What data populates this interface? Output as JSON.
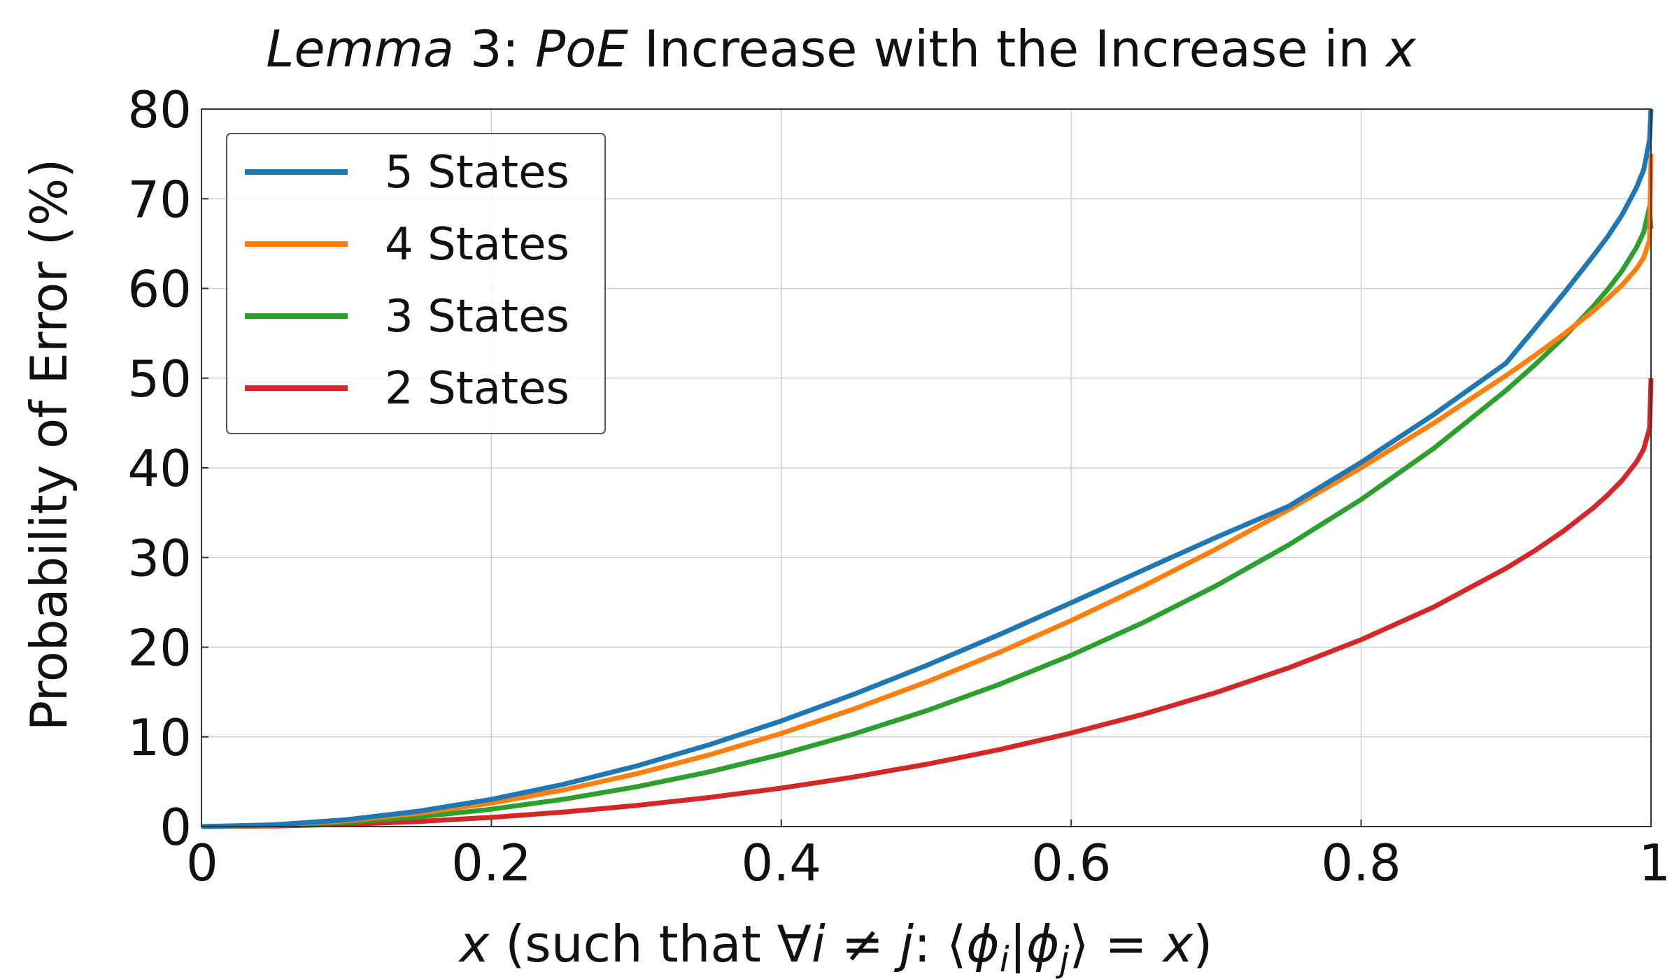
{
  "chart_data": {
    "type": "line",
    "title_parts": [
      {
        "text": "Lemma",
        "italic": true
      },
      {
        "text": " 3: ",
        "italic": false
      },
      {
        "text": "PoE",
        "italic": true
      },
      {
        "text": " Increase with the Increase in ",
        "italic": false
      },
      {
        "text": "x",
        "italic": true
      }
    ],
    "xlabel_parts": [
      {
        "text": "x",
        "italic": true
      },
      {
        "text": " (such that ∀",
        "italic": false
      },
      {
        "text": "i",
        "italic": true
      },
      {
        "text": " ≠ ",
        "italic": false
      },
      {
        "text": "j",
        "italic": true
      },
      {
        "text": ": ⟨",
        "italic": false
      },
      {
        "text": "ϕ",
        "italic": true
      },
      {
        "text": "i",
        "italic": true,
        "sub": true
      },
      {
        "text": "|",
        "italic": false
      },
      {
        "text": "ϕ",
        "italic": true
      },
      {
        "text": "j",
        "italic": true,
        "sub": true
      },
      {
        "text": "⟩ = ",
        "italic": false
      },
      {
        "text": "x",
        "italic": true
      },
      {
        "text": ")",
        "italic": false
      }
    ],
    "ylabel": "Probability of Error (%)",
    "xlim": [
      0,
      1
    ],
    "ylim": [
      0,
      80
    ],
    "x_ticks": [
      0,
      0.2,
      0.4,
      0.6,
      0.8,
      1
    ],
    "x_tick_labels": [
      "0",
      "0.2",
      "0.4",
      "0.6",
      "0.8",
      "1"
    ],
    "y_ticks": [
      0,
      10,
      20,
      30,
      40,
      50,
      60,
      70,
      80
    ],
    "y_tick_labels": [
      "0",
      "10",
      "20",
      "30",
      "40",
      "50",
      "60",
      "70",
      "80"
    ],
    "grid": true,
    "legend_position": "top-left",
    "x": [
      0,
      0.05,
      0.1,
      0.15,
      0.2,
      0.25,
      0.3,
      0.35,
      0.4,
      0.45,
      0.5,
      0.55,
      0.6,
      0.65,
      0.7,
      0.75,
      0.8,
      0.85,
      0.9,
      0.92,
      0.94,
      0.96,
      0.97,
      0.98,
      0.99,
      0.995,
      0.999,
      1.0
    ],
    "series": [
      {
        "name": "5 States",
        "color": "#1f77b4",
        "values": [
          0,
          0.1918,
          0.7644,
          1.7143,
          3.0349,
          4.7168,
          6.7472,
          9.1096,
          11.7832,
          14.7418,
          17.9526,
          21.3741,
          24.9522,
          28.6131,
          32.2522,
          35.7126,
          40.6046,
          45.9284,
          51.6712,
          55.5446,
          59.4935,
          63.6018,
          65.7476,
          68.2058,
          71.2624,
          73.2578,
          76.5546,
          80.0
        ]
      },
      {
        "name": "4 States",
        "color": "#ff7f0e",
        "values": [
          0,
          0.1645,
          0.6573,
          1.4776,
          2.6234,
          4.0915,
          5.878,
          7.9781,
          10.386,
          13.0956,
          16.1004,
          19.3938,
          22.9692,
          26.8208,
          30.9441,
          35.3377,
          40.0065,
          44.9697,
          50.2835,
          52.5407,
          54.9152,
          57.4705,
          58.859,
          60.3707,
          62.215,
          63.4437,
          65.3904,
          75.0
        ]
      },
      {
        "name": "3 States",
        "color": "#2ca02c",
        "values": [
          0,
          0.1186,
          0.4767,
          1.0789,
          1.9322,
          3.0456,
          4.4291,
          6.0935,
          8.0521,
          10.3169,
          12.9023,
          15.8247,
          19.1056,
          22.771,
          26.8537,
          31.3971,
          36.4648,
          42.153,
          48.6277,
          51.4974,
          54.5811,
          57.9786,
          59.8702,
          61.9702,
          64.576,
          66.2868,
          69.1078,
          66.667
        ]
      },
      {
        "name": "2 States",
        "color": "#d62728",
        "values": [
          0,
          0.0626,
          0.2513,
          0.569,
          1.0204,
          1.6106,
          2.3465,
          3.2362,
          4.2893,
          5.5182,
          6.9373,
          8.5646,
          10.4221,
          12.5374,
          14.9447,
          17.6885,
          20.8333,
          24.4699,
          28.7917,
          30.7829,
          32.989,
          35.5102,
          36.9521,
          38.5946,
          40.6627,
          42.1012,
          44.4086,
          50.0
        ]
      }
    ]
  }
}
